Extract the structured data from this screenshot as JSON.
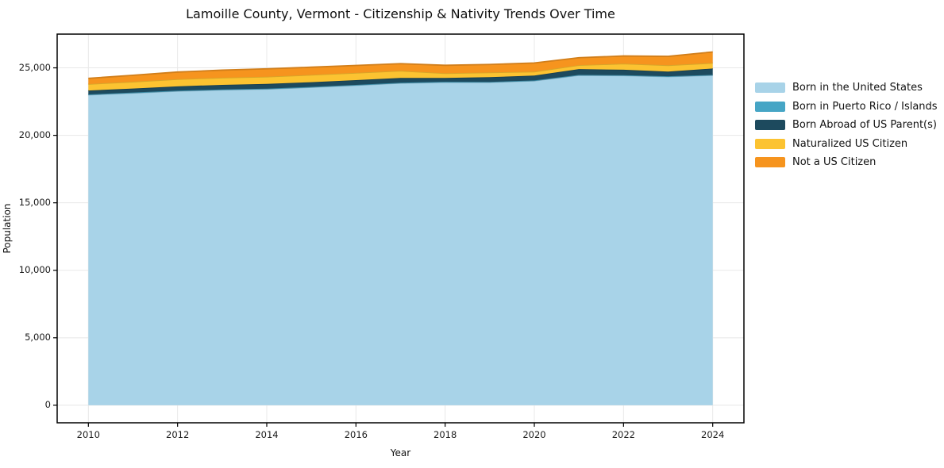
{
  "title": "Lamoille County, Vermont - Citizenship & Nativity Trends Over Time",
  "chart_data": {
    "type": "area",
    "stacked": true,
    "title": "Lamoille County, Vermont - Citizenship & Nativity Trends Over Time",
    "xlabel": "Year",
    "ylabel": "Population",
    "x": [
      2010,
      2011,
      2012,
      2013,
      2014,
      2015,
      2016,
      2017,
      2018,
      2019,
      2020,
      2021,
      2022,
      2023,
      2024
    ],
    "series": [
      {
        "name": "Born in the United States",
        "color": "#a8d3e8",
        "values": [
          23000,
          23140,
          23280,
          23370,
          23430,
          23560,
          23710,
          23870,
          23940,
          23930,
          24040,
          24450,
          24430,
          24350,
          24450
        ]
      },
      {
        "name": "Born in Puerto Rico / Islands",
        "color": "#46a5c5",
        "values": [
          30,
          30,
          30,
          30,
          30,
          30,
          30,
          30,
          30,
          30,
          30,
          30,
          30,
          30,
          30
        ]
      },
      {
        "name": "Born Abroad of US Parent(s)",
        "color": "#1d4a5e",
        "values": [
          290,
          300,
          320,
          340,
          350,
          350,
          350,
          350,
          280,
          350,
          360,
          430,
          400,
          340,
          470
        ]
      },
      {
        "name": "Naturalized US Citizen",
        "color": "#fcc331",
        "values": [
          480,
          500,
          530,
          530,
          530,
          540,
          540,
          530,
          350,
          350,
          290,
          290,
          450,
          470,
          410
        ]
      },
      {
        "name": "Not a US Citizen",
        "color": "#f6941e",
        "values": [
          420,
          480,
          530,
          560,
          590,
          570,
          550,
          530,
          590,
          590,
          640,
          550,
          570,
          660,
          820
        ]
      }
    ],
    "xlim": [
      2009.3,
      2024.7
    ],
    "ylim": [
      -1300,
      27500
    ],
    "x_ticks": [
      2010,
      2012,
      2014,
      2016,
      2018,
      2020,
      2022,
      2024
    ],
    "y_ticks": [
      0,
      5000,
      10000,
      15000,
      20000,
      25000
    ],
    "y_tick_labels": [
      "0",
      "5,000",
      "10,000",
      "15,000",
      "20,000",
      "25,000"
    ],
    "grid": true,
    "legend_position": "right-outside"
  },
  "colors": {
    "grid": "#e8e8e8",
    "spine": "#000000",
    "background": "#ffffff",
    "text": "#111111"
  }
}
